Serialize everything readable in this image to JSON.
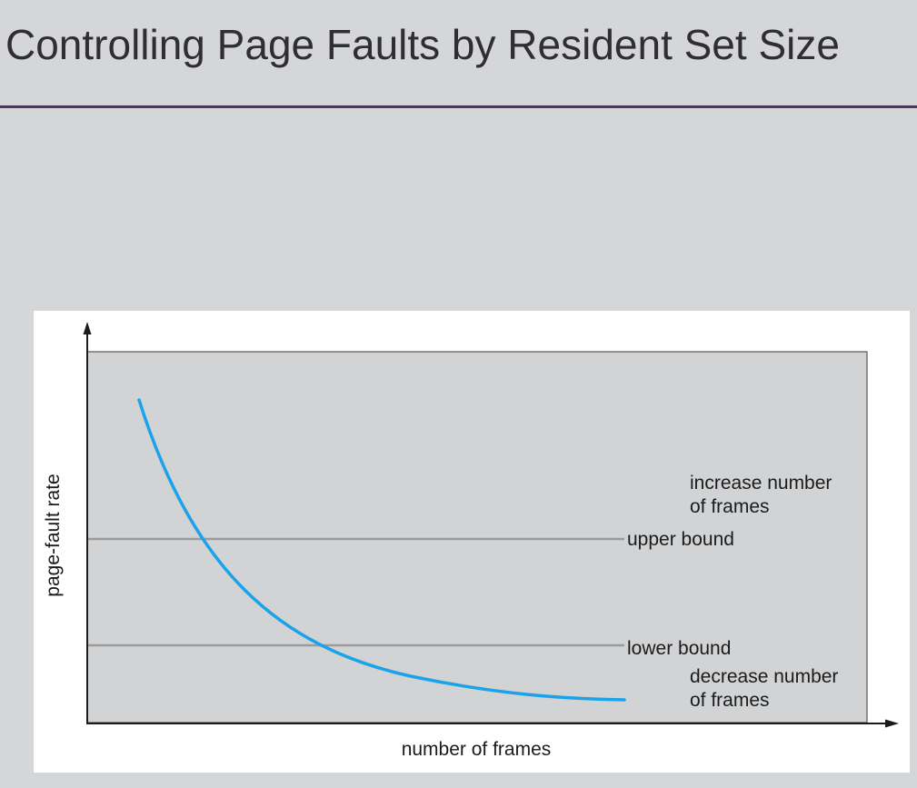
{
  "slide": {
    "title": "Controlling Page Faults by Resident Set Size"
  },
  "figure": {
    "y_axis_label": "page-fault rate",
    "x_axis_label": "number of frames",
    "upper_bound_label": "upper bound",
    "lower_bound_label": "lower bound",
    "increase_label_line1": "increase number",
    "increase_label_line2": "of frames",
    "decrease_label_line1": "decrease number",
    "decrease_label_line2": "of frames",
    "colors": {
      "curve": "#1aa3e8",
      "plot_fill": "#d2d3d5",
      "bound_line": "#9b9b9b",
      "axis": "#1b1b1b"
    }
  }
}
